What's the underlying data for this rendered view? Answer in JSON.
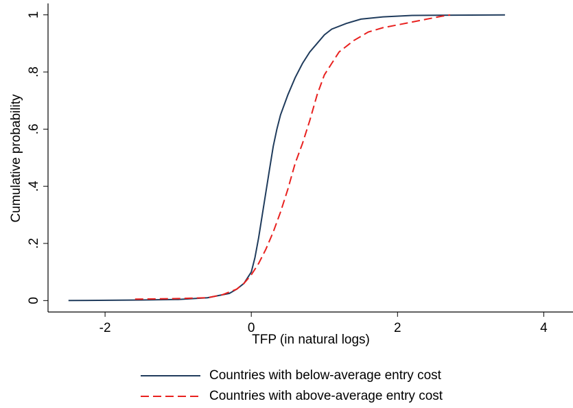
{
  "chart_data": {
    "type": "line",
    "x_label": "TFP (in natural logs)",
    "y_label": "Cumulative probability",
    "xlim": [
      -2.78,
      4.4
    ],
    "ylim": [
      -0.04,
      1.04
    ],
    "xticks": [
      -2,
      0,
      2,
      4
    ],
    "yticks": [
      0,
      {
        "value": 0.2,
        "label": ".2"
      },
      {
        "value": 0.4,
        "label": ".4"
      },
      {
        "value": 0.6,
        "label": ".6"
      },
      {
        "value": 0.8,
        "label": ".8"
      },
      1
    ],
    "grid": false,
    "legend": "bottom",
    "series": [
      {
        "name": "Countries with below-average entry cost",
        "color": "#1f3b5c",
        "line_style": "solid",
        "x": [
          -2.5,
          -1.5,
          -1.0,
          -0.6,
          -0.4,
          -0.3,
          -0.2,
          -0.1,
          0,
          0.05,
          0.1,
          0.15,
          0.2,
          0.25,
          0.3,
          0.35,
          0.4,
          0.5,
          0.6,
          0.7,
          0.8,
          0.9,
          1.0,
          1.1,
          1.3,
          1.5,
          1.8,
          2.2,
          3.47
        ],
        "values": [
          0,
          0.002,
          0.004,
          0.01,
          0.02,
          0.025,
          0.04,
          0.06,
          0.1,
          0.15,
          0.22,
          0.3,
          0.38,
          0.46,
          0.54,
          0.6,
          0.65,
          0.72,
          0.78,
          0.83,
          0.87,
          0.9,
          0.93,
          0.95,
          0.97,
          0.985,
          0.993,
          0.998,
          1
        ]
      },
      {
        "name": "Countries with above-average entry cost",
        "color": "#e8201e",
        "line_style": "dashed",
        "x": [
          -1.59,
          -1.0,
          -0.6,
          -0.4,
          -0.2,
          -0.1,
          0,
          0.1,
          0.2,
          0.3,
          0.4,
          0.5,
          0.6,
          0.7,
          0.8,
          0.9,
          1.0,
          1.1,
          1.2,
          1.4,
          1.6,
          1.8,
          2.0,
          2.2,
          2.4,
          2.6,
          2.72
        ],
        "values": [
          0.005,
          0.007,
          0.01,
          0.02,
          0.04,
          0.06,
          0.09,
          0.13,
          0.18,
          0.24,
          0.31,
          0.39,
          0.48,
          0.55,
          0.63,
          0.72,
          0.79,
          0.83,
          0.87,
          0.91,
          0.94,
          0.955,
          0.965,
          0.975,
          0.985,
          0.995,
          1
        ]
      }
    ]
  }
}
